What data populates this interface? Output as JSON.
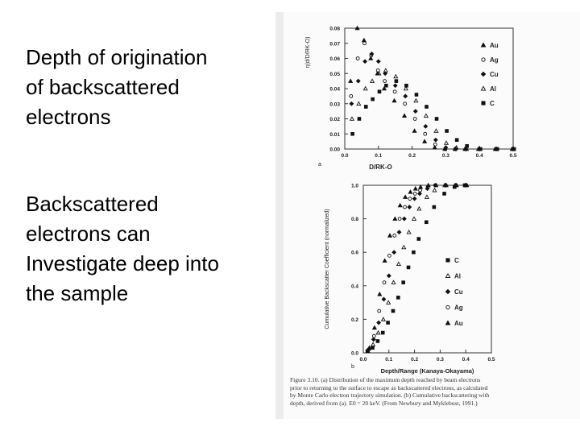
{
  "slide": {
    "paragraphs": [
      [
        "Depth of origination",
        "of backscattered",
        "electrons"
      ],
      [
        "Backscattered",
        "electrons can",
        "Investigate deep into",
        "the sample"
      ]
    ]
  },
  "caption": "Figure 3.10. (a) Distribution of the maximum depth reached by beam electrons prior to returning to the surface to escape as backscattered electrons, as calculated by Monte Carlo electron trajectory simulation. (b) Cumulative backscattering with depth, derived from (a). E0 = 20 keV. (From Newbury and Myklebust, 1991.)",
  "chart_data": [
    {
      "type": "scatter",
      "panel_label": "a",
      "x_label": "D/RK-O",
      "y_label": "η(d/D/RK-O)",
      "x": [
        0.02,
        0.04,
        0.06,
        0.08,
        0.1,
        0.12,
        0.15,
        0.18,
        0.21,
        0.24,
        0.27,
        0.3,
        0.33,
        0.36,
        0.4,
        0.45,
        0.5
      ],
      "xlim": [
        0,
        0.5
      ],
      "ylim": [
        0,
        0.08
      ],
      "xticks": [
        {
          "value": 0,
          "label": "0.0"
        },
        0.1,
        0.2,
        0.3,
        0.4,
        0.5
      ],
      "yticks": [
        {
          "value": 0,
          "label": "0.00"
        },
        0.01,
        0.02,
        0.03,
        0.04,
        0.05,
        0.06,
        0.07,
        0.08
      ],
      "series": [
        {
          "name": "Au",
          "marker": "triangle-filled",
          "color": "#111111",
          "values": [
            0.045,
            0.08,
            0.072,
            0.06,
            0.05,
            0.04,
            0.032,
            0.022,
            0.012,
            0.005,
            0.001,
            0,
            0,
            0,
            0,
            0,
            0
          ]
        },
        {
          "name": "Ag",
          "marker": "circle-open",
          "color": "#111111",
          "values": [
            0.035,
            0.06,
            0.07,
            0.062,
            0.052,
            0.045,
            0.038,
            0.03,
            0.02,
            0.01,
            0.003,
            0,
            0,
            0,
            0,
            0,
            0
          ]
        },
        {
          "name": "Cu",
          "marker": "diamond-filled",
          "color": "#111111",
          "values": [
            0.03,
            0.045,
            0.058,
            0.063,
            0.058,
            0.05,
            0.042,
            0.035,
            0.025,
            0.015,
            0.006,
            0.001,
            0,
            0,
            0,
            0,
            0
          ]
        },
        {
          "name": "Al",
          "marker": "triangle-open",
          "color": "#111111",
          "values": [
            0.02,
            0.03,
            0.04,
            0.045,
            0.05,
            0.052,
            0.048,
            0.04,
            0.032,
            0.022,
            0.012,
            0.004,
            0.001,
            0,
            0,
            0,
            0
          ]
        },
        {
          "name": "C",
          "marker": "square-filled",
          "color": "#111111",
          "values": [
            0.01,
            0.02,
            0.028,
            0.033,
            0.038,
            0.042,
            0.045,
            0.042,
            0.036,
            0.028,
            0.02,
            0.012,
            0.006,
            0.002,
            0,
            0,
            0
          ]
        }
      ]
    },
    {
      "type": "scatter",
      "panel_label": "b",
      "x_label": "Depth/Range (Kanaya-Okayama)",
      "y_label": "Cumulative Backscatter Coefficient (normalized)",
      "x": [
        0.02,
        0.04,
        0.06,
        0.08,
        0.1,
        0.12,
        0.14,
        0.16,
        0.18,
        0.2,
        0.22,
        0.25,
        0.28,
        0.32,
        0.36,
        0.4
      ],
      "xlim": [
        0,
        0.5
      ],
      "ylim": [
        0,
        1
      ],
      "xticks": [
        {
          "value": 0,
          "label": "0.0"
        },
        0.1,
        0.2,
        0.3,
        0.4,
        0.5
      ],
      "yticks": [
        {
          "value": 0,
          "label": "0.0"
        },
        0.2,
        0.4,
        0.6,
        0.8,
        {
          "value": 1,
          "label": "1.0"
        }
      ],
      "series": [
        {
          "name": "C",
          "marker": "square-filled",
          "color": "#111111",
          "values": [
            0.01,
            0.03,
            0.07,
            0.12,
            0.18,
            0.25,
            0.33,
            0.42,
            0.51,
            0.6,
            0.68,
            0.78,
            0.87,
            0.95,
            0.99,
            1
          ]
        },
        {
          "name": "Al",
          "marker": "triangle-open",
          "color": "#111111",
          "values": [
            0.01,
            0.05,
            0.12,
            0.2,
            0.3,
            0.42,
            0.53,
            0.63,
            0.72,
            0.8,
            0.86,
            0.93,
            0.97,
            1,
            1,
            1
          ]
        },
        {
          "name": "Cu",
          "marker": "diamond-filled",
          "color": "#111111",
          "values": [
            0.02,
            0.08,
            0.18,
            0.32,
            0.46,
            0.6,
            0.72,
            0.8,
            0.87,
            0.92,
            0.95,
            0.98,
            1,
            1,
            1,
            1
          ]
        },
        {
          "name": "Ag",
          "marker": "circle-open",
          "color": "#111111",
          "values": [
            0.02,
            0.1,
            0.25,
            0.42,
            0.58,
            0.7,
            0.8,
            0.87,
            0.92,
            0.95,
            0.97,
            0.99,
            1,
            1,
            1,
            1
          ]
        },
        {
          "name": "Au",
          "marker": "triangle-filled",
          "color": "#111111",
          "values": [
            0.03,
            0.15,
            0.35,
            0.55,
            0.7,
            0.8,
            0.88,
            0.93,
            0.96,
            0.98,
            0.99,
            1,
            1,
            1,
            1,
            1
          ]
        }
      ]
    }
  ]
}
